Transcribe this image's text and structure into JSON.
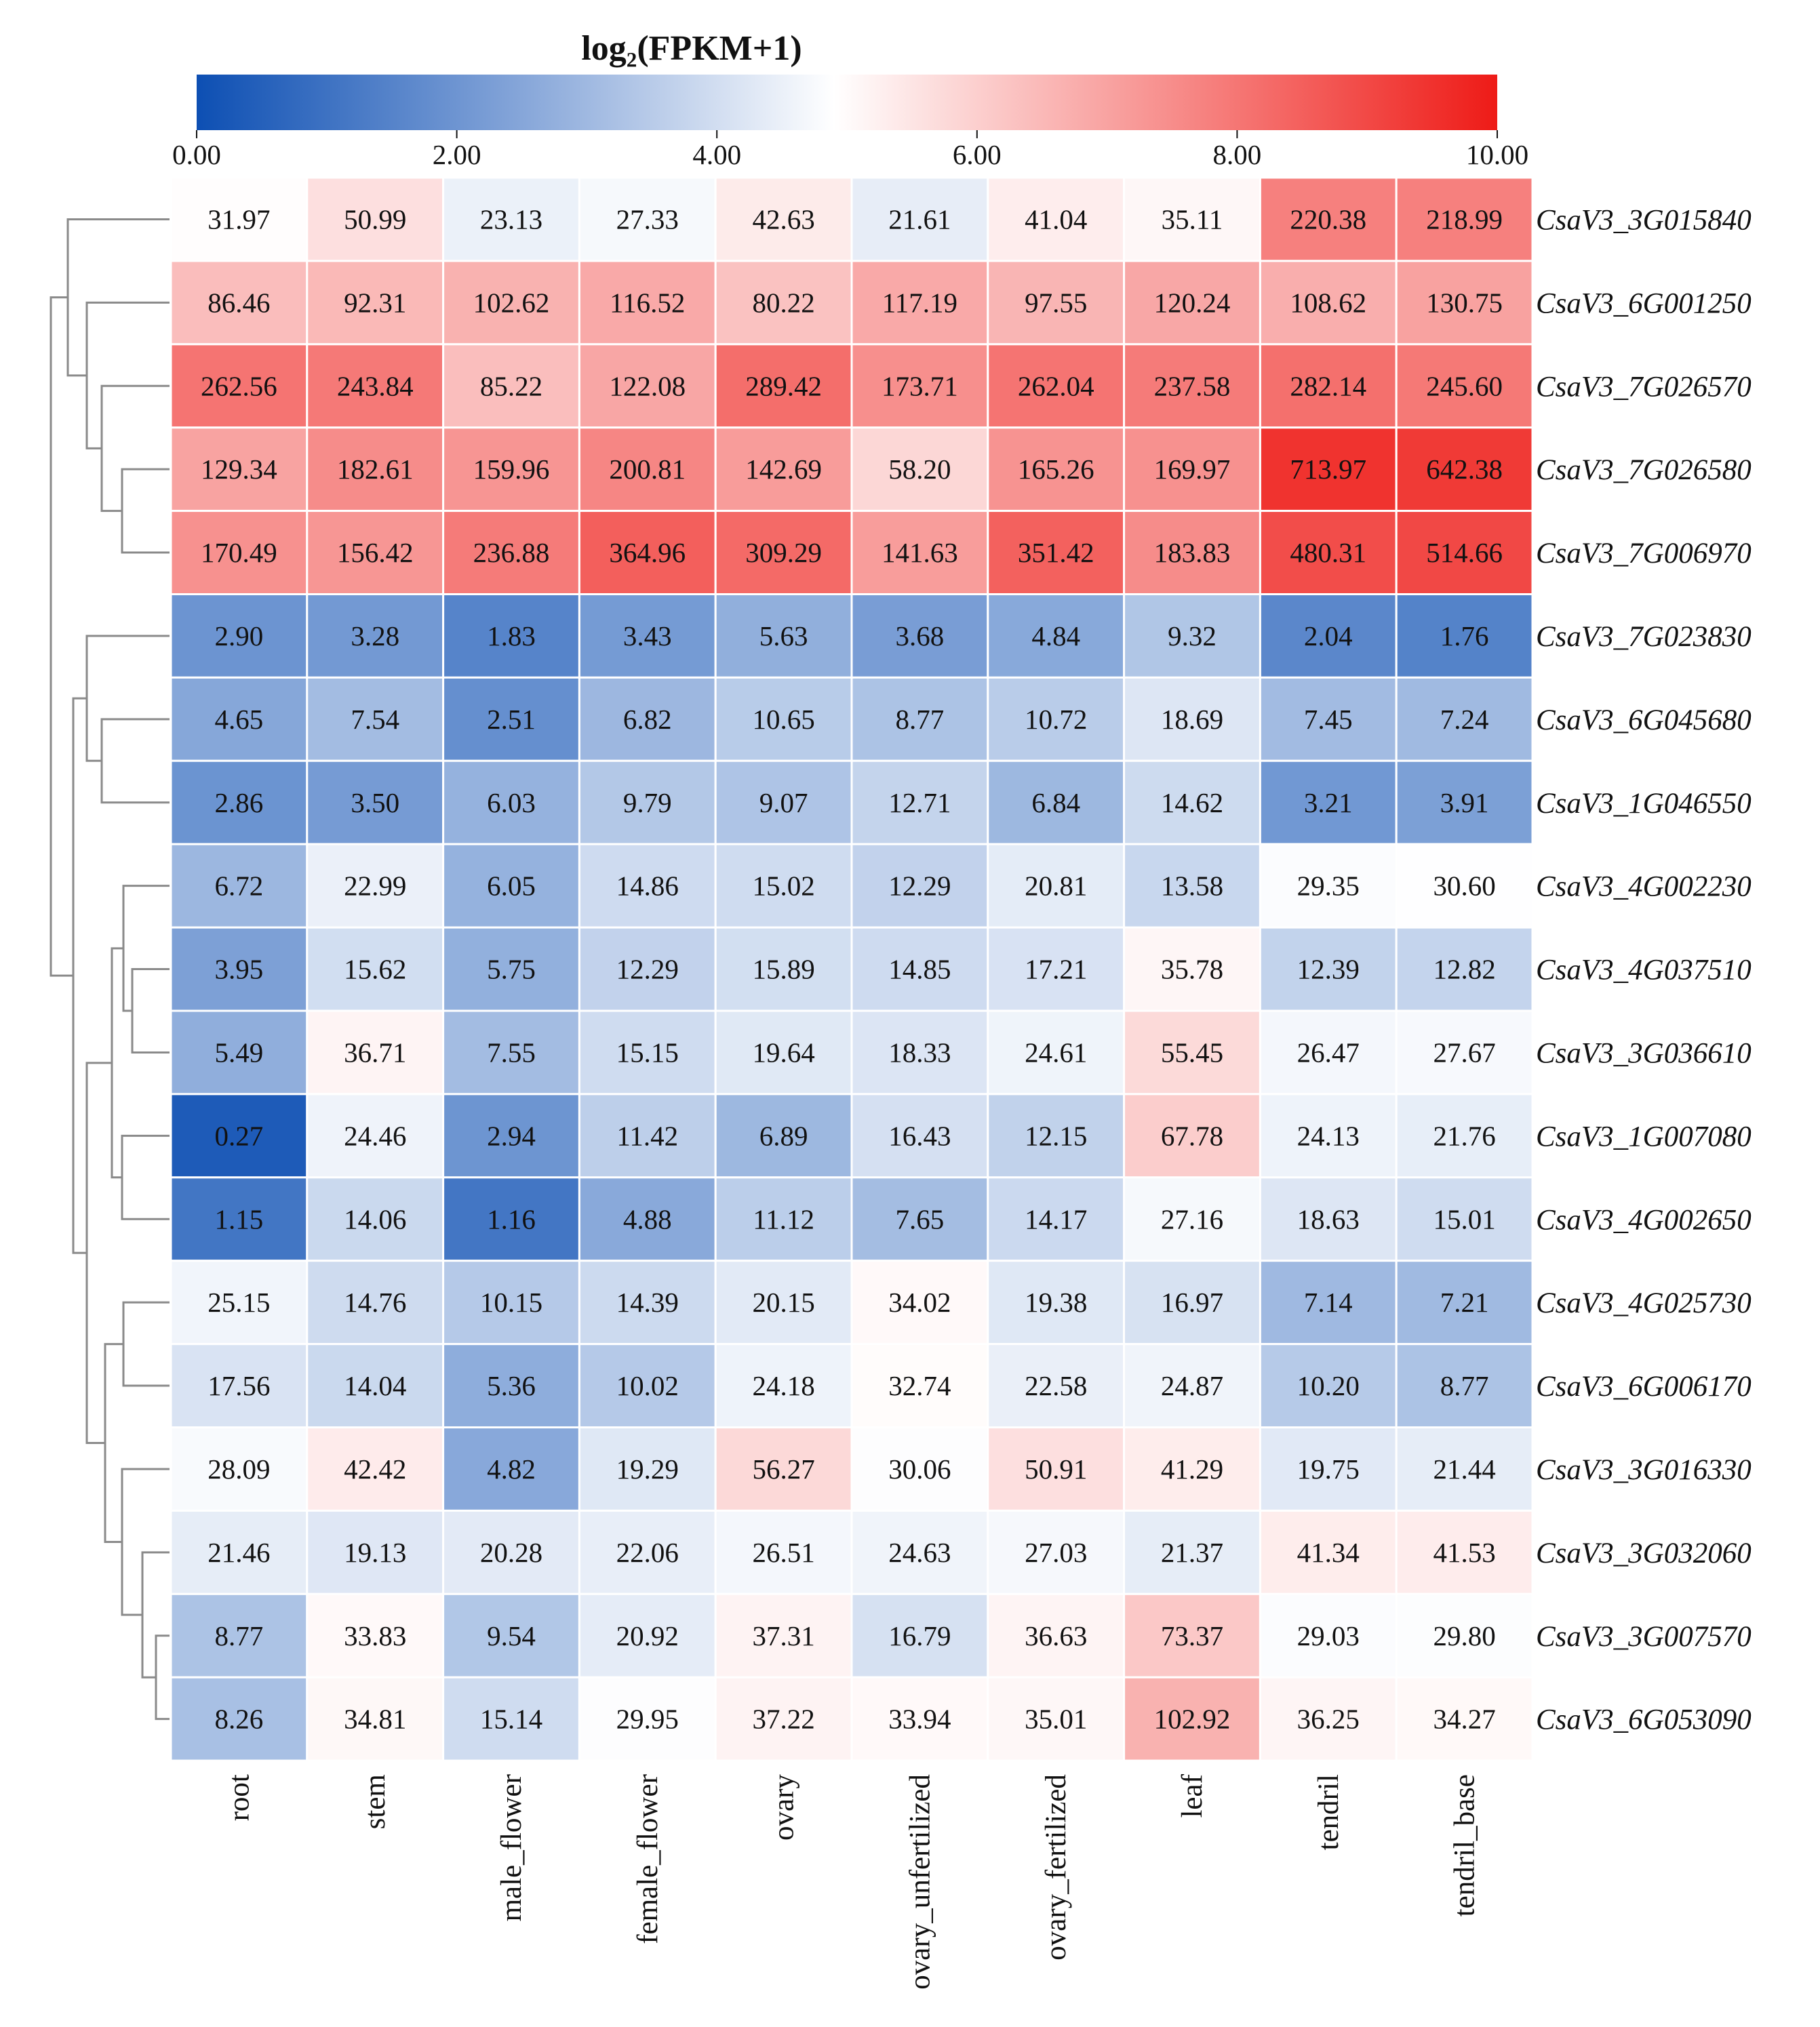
{
  "chart_data": {
    "type": "heatmap",
    "title": "log₂(FPKM+1)",
    "color_scale": {
      "min": 0,
      "max": 10,
      "ticks": [
        "0.00",
        "2.00",
        "4.00",
        "6.00",
        "8.00",
        "10.00"
      ],
      "colors": {
        "low": "#0d4fb3",
        "mid": "#ffffff",
        "high": "#ee1b17"
      }
    },
    "columns": [
      "root",
      "stem",
      "male_flower",
      "female_flower",
      "ovary",
      "ovary_unfertilized",
      "ovary_fertilized",
      "leaf",
      "tendril",
      "tendril_base"
    ],
    "rows": [
      {
        "gene": "CsaV3_3G015840",
        "values": [
          "31.97",
          "50.99",
          "23.13",
          "27.33",
          "42.63",
          "21.61",
          "41.04",
          "35.11",
          "220.38",
          "218.99"
        ]
      },
      {
        "gene": "CsaV3_6G001250",
        "values": [
          "86.46",
          "92.31",
          "102.62",
          "116.52",
          "80.22",
          "117.19",
          "97.55",
          "120.24",
          "108.62",
          "130.75"
        ]
      },
      {
        "gene": "CsaV3_7G026570",
        "values": [
          "262.56",
          "243.84",
          "85.22",
          "122.08",
          "289.42",
          "173.71",
          "262.04",
          "237.58",
          "282.14",
          "245.60"
        ]
      },
      {
        "gene": "CsaV3_7G026580",
        "values": [
          "129.34",
          "182.61",
          "159.96",
          "200.81",
          "142.69",
          "58.20",
          "165.26",
          "169.97",
          "713.97",
          "642.38"
        ]
      },
      {
        "gene": "CsaV3_7G006970",
        "values": [
          "170.49",
          "156.42",
          "236.88",
          "364.96",
          "309.29",
          "141.63",
          "351.42",
          "183.83",
          "480.31",
          "514.66"
        ]
      },
      {
        "gene": "CsaV3_7G023830",
        "values": [
          "2.90",
          "3.28",
          "1.83",
          "3.43",
          "5.63",
          "3.68",
          "4.84",
          "9.32",
          "2.04",
          "1.76"
        ]
      },
      {
        "gene": "CsaV3_6G045680",
        "values": [
          "4.65",
          "7.54",
          "2.51",
          "6.82",
          "10.65",
          "8.77",
          "10.72",
          "18.69",
          "7.45",
          "7.24"
        ]
      },
      {
        "gene": "CsaV3_1G046550",
        "values": [
          "2.86",
          "3.50",
          "6.03",
          "9.79",
          "9.07",
          "12.71",
          "6.84",
          "14.62",
          "3.21",
          "3.91"
        ]
      },
      {
        "gene": "CsaV3_4G002230",
        "values": [
          "6.72",
          "22.99",
          "6.05",
          "14.86",
          "15.02",
          "12.29",
          "20.81",
          "13.58",
          "29.35",
          "30.60"
        ]
      },
      {
        "gene": "CsaV3_4G037510",
        "values": [
          "3.95",
          "15.62",
          "5.75",
          "12.29",
          "15.89",
          "14.85",
          "17.21",
          "35.78",
          "12.39",
          "12.82"
        ]
      },
      {
        "gene": "CsaV3_3G036610",
        "values": [
          "5.49",
          "36.71",
          "7.55",
          "15.15",
          "19.64",
          "18.33",
          "24.61",
          "55.45",
          "26.47",
          "27.67"
        ]
      },
      {
        "gene": "CsaV3_1G007080",
        "values": [
          "0.27",
          "24.46",
          "2.94",
          "11.42",
          "6.89",
          "16.43",
          "12.15",
          "67.78",
          "24.13",
          "21.76"
        ]
      },
      {
        "gene": "CsaV3_4G002650",
        "values": [
          "1.15",
          "14.06",
          "1.16",
          "4.88",
          "11.12",
          "7.65",
          "14.17",
          "27.16",
          "18.63",
          "15.01"
        ]
      },
      {
        "gene": "CsaV3_4G025730",
        "values": [
          "25.15",
          "14.76",
          "10.15",
          "14.39",
          "20.15",
          "34.02",
          "19.38",
          "16.97",
          "7.14",
          "7.21"
        ]
      },
      {
        "gene": "CsaV3_6G006170",
        "values": [
          "17.56",
          "14.04",
          "5.36",
          "10.02",
          "24.18",
          "32.74",
          "22.58",
          "24.87",
          "10.20",
          "8.77"
        ]
      },
      {
        "gene": "CsaV3_3G016330",
        "values": [
          "28.09",
          "42.42",
          "4.82",
          "19.29",
          "56.27",
          "30.06",
          "50.91",
          "41.29",
          "19.75",
          "21.44"
        ]
      },
      {
        "gene": "CsaV3_3G032060",
        "values": [
          "21.46",
          "19.13",
          "20.28",
          "22.06",
          "26.51",
          "24.63",
          "27.03",
          "21.37",
          "41.34",
          "41.53"
        ]
      },
      {
        "gene": "CsaV3_3G007570",
        "values": [
          "8.77",
          "33.83",
          "9.54",
          "20.92",
          "37.31",
          "16.79",
          "36.63",
          "73.37",
          "29.03",
          "29.80"
        ]
      },
      {
        "gene": "CsaV3_6G053090",
        "values": [
          "8.26",
          "34.81",
          "15.14",
          "29.95",
          "37.22",
          "33.94",
          "35.01",
          "102.92",
          "36.25",
          "34.27"
        ]
      }
    ]
  }
}
